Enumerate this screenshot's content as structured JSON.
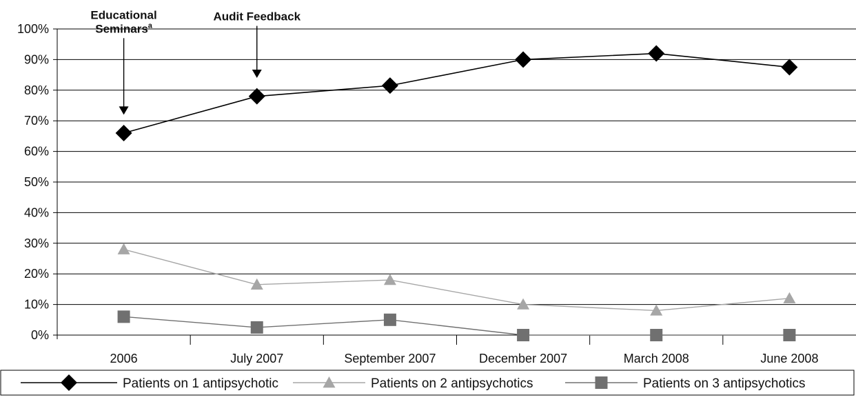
{
  "chart_data": {
    "type": "line",
    "categories": [
      "2006",
      "July 2007",
      "September 2007",
      "December 2007",
      "March 2008",
      "June 2008"
    ],
    "series": [
      {
        "name": "Patients on 1 antipsychotic",
        "values": [
          66,
          78,
          81.5,
          90,
          92,
          87.5
        ],
        "color": "#000000",
        "marker": "diamond"
      },
      {
        "name": "Patients on 2 antipsychotics",
        "values": [
          28,
          16.5,
          18,
          10,
          8,
          12
        ],
        "color": "#a6a6a6",
        "marker": "triangle"
      },
      {
        "name": "Patients on 3 antipsychotics",
        "values": [
          6,
          2.5,
          5,
          0,
          0,
          0
        ],
        "color": "#707070",
        "marker": "square"
      }
    ],
    "ylim": [
      0,
      100
    ],
    "y_ticks": [
      "0%",
      "10%",
      "20%",
      "30%",
      "40%",
      "50%",
      "60%",
      "70%",
      "80%",
      "90%",
      "100%"
    ],
    "grid": true,
    "legend_position": "bottom",
    "annotations": [
      {
        "lines": [
          "Educational",
          "Seminars"
        ],
        "superscript": "a",
        "category": "2006",
        "arrow_from": 97,
        "arrow_to": 72
      },
      {
        "lines": [
          "Audit Feedback"
        ],
        "category": "July 2007",
        "arrow_from": 101,
        "arrow_to": 84
      }
    ]
  }
}
